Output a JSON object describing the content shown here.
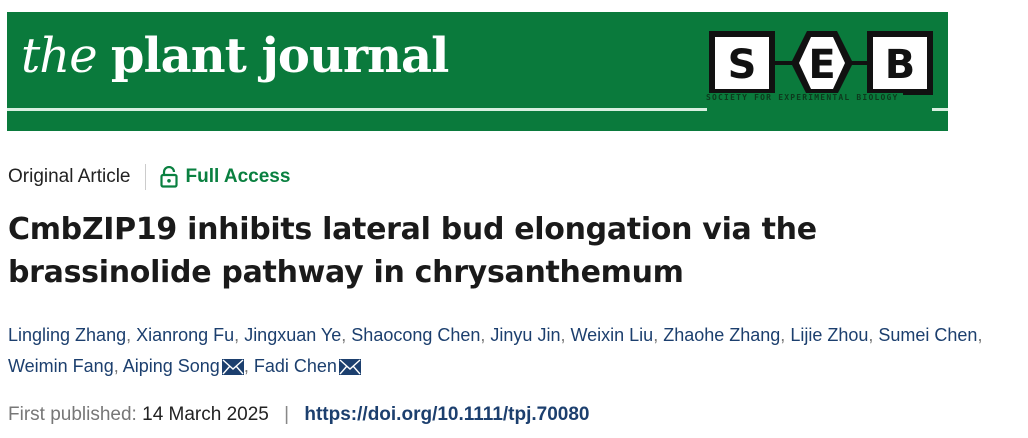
{
  "banner": {
    "journal_the": "the",
    "journal_name": "plant journal",
    "society_letters": [
      "S",
      "E",
      "B"
    ],
    "society_name": "SOCIETY FOR EXPERIMENTAL BIOLOGY",
    "color": "#0a7a3c"
  },
  "meta": {
    "article_type": "Original Article",
    "access_icon": "unlock-icon",
    "access": "Full Access",
    "access_color": "#0a8040"
  },
  "title": "CmbZIP19 inhibits lateral bud elongation via the brassinolide pathway in chrysanthemum",
  "authors": [
    {
      "name": "Lingling Zhang",
      "mail": false
    },
    {
      "name": "Xianrong Fu",
      "mail": false
    },
    {
      "name": "Jingxuan Ye",
      "mail": false
    },
    {
      "name": "Shaocong Chen",
      "mail": false
    },
    {
      "name": "Jinyu Jin",
      "mail": false
    },
    {
      "name": "Weixin Liu",
      "mail": false
    },
    {
      "name": "Zhaohe Zhang",
      "mail": false
    },
    {
      "name": "Lijie Zhou",
      "mail": false
    },
    {
      "name": "Sumei Chen",
      "mail": false
    },
    {
      "name": "Weimin Fang",
      "mail": false
    },
    {
      "name": "Aiping Song",
      "mail": true
    },
    {
      "name": "Fadi Chen",
      "mail": true
    }
  ],
  "publication": {
    "label": "First published:",
    "date": "14 March 2025",
    "separator": "|",
    "doi": "https://doi.org/10.1111/tpj.70080"
  }
}
